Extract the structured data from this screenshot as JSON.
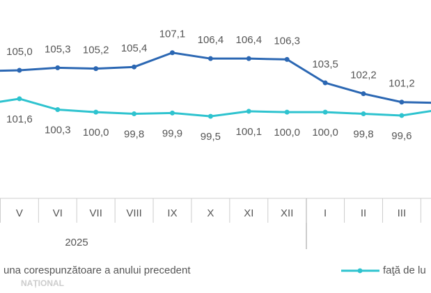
{
  "chart_data": {
    "type": "line",
    "categories": [
      null,
      "V",
      "VI",
      "VII",
      "VIII",
      "IX",
      "X",
      "XI",
      "XII",
      "I",
      "II",
      "III",
      null
    ],
    "group_label": "2025",
    "series": [
      {
        "name": "una corespunzătoare a anului precedent",
        "color": "#2b67b3",
        "values": [
          104.9,
          105.0,
          105.3,
          105.2,
          105.4,
          107.1,
          106.4,
          106.4,
          106.3,
          103.5,
          102.2,
          101.2,
          101.1
        ],
        "value_labels": [
          null,
          "105,0",
          "105,3",
          "105,2",
          "105,4",
          "107,1",
          "106,4",
          "106,4",
          "106,3",
          "103,5",
          "102,2",
          "101,2",
          null
        ]
      },
      {
        "name": "faţă de lu",
        "color": "#2ec3cf",
        "values": [
          100.9,
          101.6,
          100.3,
          100.0,
          99.8,
          99.9,
          99.5,
          100.1,
          100.0,
          100.0,
          99.8,
          99.6,
          100.3
        ],
        "value_labels": [
          null,
          "101,6",
          "100,3",
          "100,0",
          "99,8",
          "99,9",
          "99,5",
          "100,1",
          "100,0",
          "100,0",
          "99,8",
          "99,6",
          null
        ]
      }
    ],
    "ylim": [
      89.7,
      113.4
    ],
    "watermark": "NAȚIONAL"
  }
}
